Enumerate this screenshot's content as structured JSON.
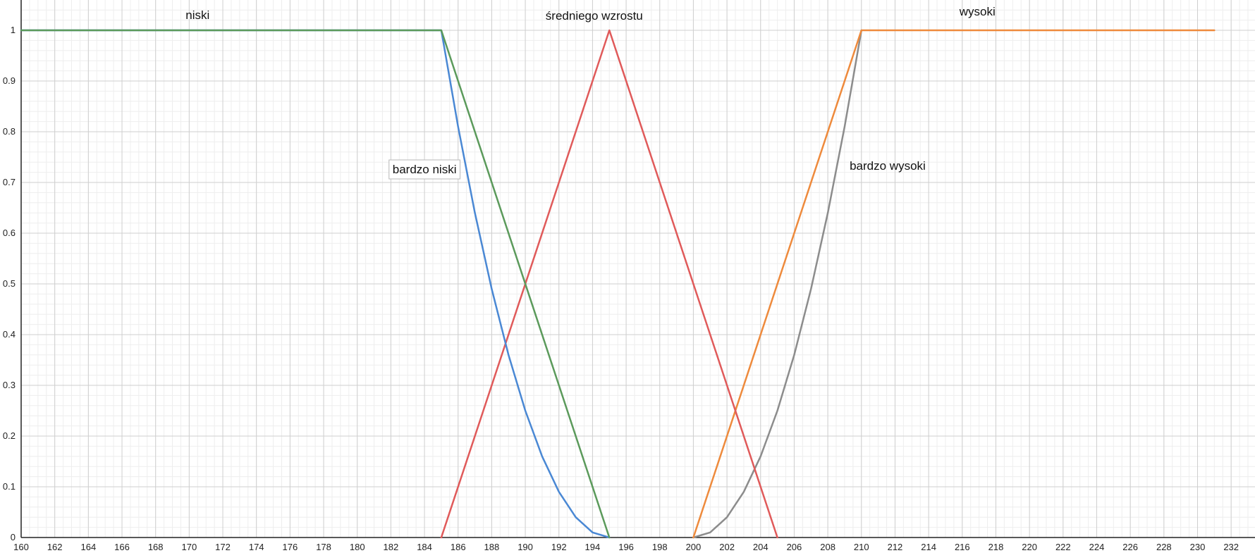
{
  "chart_data": {
    "type": "line",
    "xlim": [
      160,
      233
    ],
    "ylim": [
      0,
      1
    ],
    "grid": true,
    "x_ticks": [
      160,
      162,
      164,
      166,
      168,
      170,
      172,
      174,
      176,
      178,
      180,
      182,
      184,
      186,
      188,
      190,
      192,
      194,
      196,
      198,
      200,
      202,
      204,
      206,
      208,
      210,
      212,
      214,
      216,
      218,
      220,
      222,
      224,
      226,
      228,
      230,
      232
    ],
    "y_ticks": [
      0,
      0.1,
      0.2,
      0.3,
      0.4,
      0.5,
      0.6,
      0.7,
      0.8,
      0.9,
      1
    ],
    "series": [
      {
        "name": "niski",
        "color": "#5b9a5b",
        "points": [
          [
            160,
            1
          ],
          [
            185,
            1
          ],
          [
            195,
            0
          ]
        ]
      },
      {
        "name": "bardzo niski",
        "color": "#4a88d4",
        "points": [
          [
            160,
            1
          ],
          [
            185,
            1
          ],
          [
            186,
            0.81
          ],
          [
            187,
            0.64
          ],
          [
            188,
            0.49
          ],
          [
            189,
            0.36
          ],
          [
            190,
            0.25
          ],
          [
            191,
            0.16
          ],
          [
            192,
            0.09
          ],
          [
            193,
            0.04
          ],
          [
            194,
            0.01
          ],
          [
            195,
            0
          ]
        ]
      },
      {
        "name": "średniego wzrostu",
        "color": "#e05a5a",
        "points": [
          [
            185,
            0
          ],
          [
            195,
            1
          ],
          [
            205,
            0
          ]
        ]
      },
      {
        "name": "wysoki",
        "color": "#ee8a3c",
        "points": [
          [
            200,
            0
          ],
          [
            210,
            1
          ],
          [
            231,
            1
          ]
        ]
      },
      {
        "name": "bardzo wysoki",
        "color": "#8c8c8c",
        "points": [
          [
            200,
            0
          ],
          [
            201,
            0.01
          ],
          [
            202,
            0.04
          ],
          [
            203,
            0.09
          ],
          [
            204,
            0.16
          ],
          [
            205,
            0.25
          ],
          [
            206,
            0.36
          ],
          [
            207,
            0.49
          ],
          [
            208,
            0.64
          ],
          [
            209,
            0.81
          ],
          [
            210,
            1
          ]
        ]
      }
    ],
    "annotations": [
      {
        "text": "niski",
        "boxed": false
      },
      {
        "text": "bardzo niski",
        "boxed": true
      },
      {
        "text": "średniego wzrostu",
        "boxed": false
      },
      {
        "text": "wysoki",
        "boxed": false
      },
      {
        "text": "bardzo wysoki",
        "boxed": false
      }
    ]
  }
}
